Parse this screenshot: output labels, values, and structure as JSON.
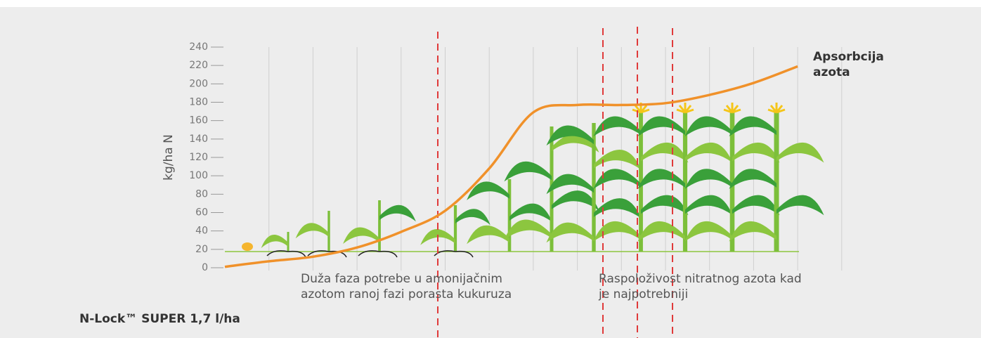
{
  "chart_data": {
    "type": "line",
    "ylabel": "kg/ha N",
    "categories": [
      null,
      null,
      null,
      null,
      null,
      null,
      null,
      null,
      null,
      null,
      null,
      null,
      null,
      null
    ],
    "series": [
      {
        "name": "Apsorbcija azota",
        "color": "#f0912a",
        "values": [
          1,
          7,
          12,
          22,
          39,
          62,
          108,
          169,
          177,
          177,
          179,
          188,
          201,
          219
        ]
      }
    ],
    "ylim": [
      0,
      240
    ],
    "yticks": [
      0,
      20,
      40,
      60,
      80,
      100,
      120,
      140,
      160,
      180,
      200,
      220,
      240
    ],
    "grid": true,
    "annotations": [
      "Duža faza potrebe u amonijačnim azotom ranoj fazi porasta kukuruza",
      "Raspoloživost nitratnog azota kad je najpotrebniji"
    ],
    "footer": "N-Lock™ SUPER 1,7 l/ha"
  }
}
